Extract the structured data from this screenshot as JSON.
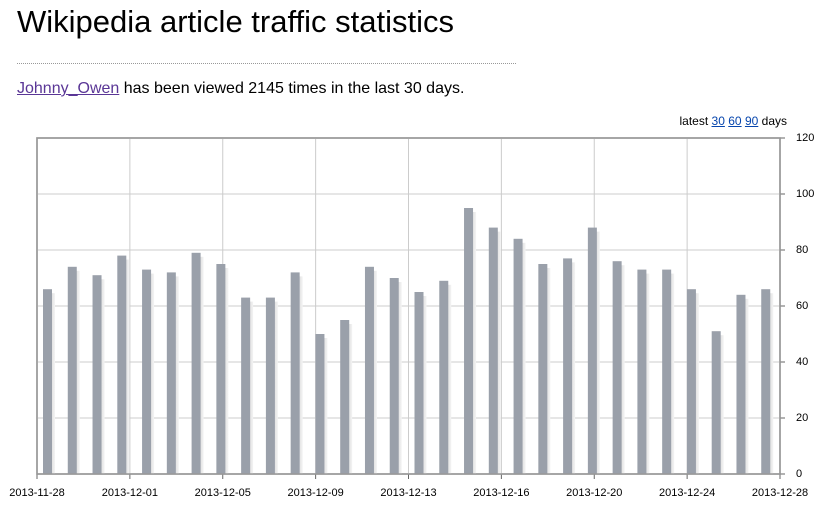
{
  "header": {
    "title": "Wikipedia article traffic statistics",
    "article": "Johnny_Owen",
    "summary": "has been viewed 2145 times in the last 30 days.",
    "latest": "latest",
    "periods": [
      "30",
      "60",
      "90"
    ],
    "days": "days"
  },
  "chart_data": {
    "type": "bar",
    "values": [
      66,
      74,
      71,
      78,
      73,
      72,
      79,
      75,
      63,
      63,
      72,
      50,
      55,
      74,
      70,
      65,
      69,
      95,
      88,
      84,
      75,
      77,
      88,
      76,
      73,
      73,
      66,
      51,
      64,
      66
    ],
    "color": "#9aa0aa",
    "ylim": [
      0,
      120
    ],
    "yticks": [
      0,
      20,
      40,
      60,
      80,
      100,
      120
    ],
    "grid": true,
    "xtick_labels": [
      "2013-11-28",
      "2013-12-01",
      "2013-12-05",
      "2013-12-09",
      "2013-12-13",
      "2013-12-16",
      "2013-12-20",
      "2013-12-24",
      "2013-12-28"
    ]
  }
}
